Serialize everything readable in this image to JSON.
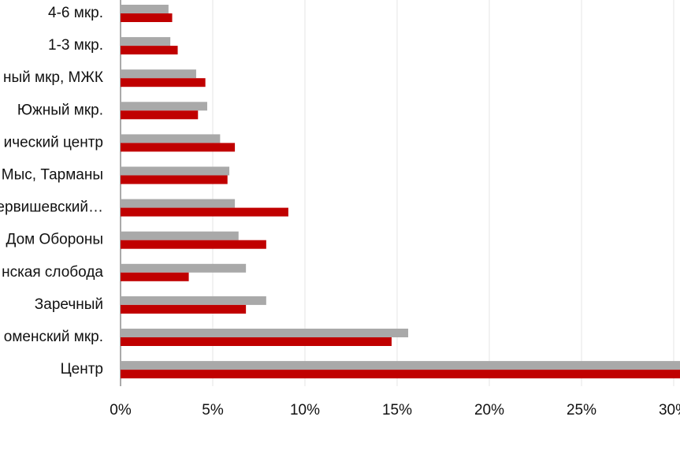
{
  "chart_data": {
    "type": "bar",
    "orientation": "horizontal",
    "categories": [
      "4-6 мкр.",
      "1-3 мкр.",
      "ный мкр, МЖК",
      "Южный мкр.",
      "ический центр",
      "Мыс, Тарманы",
      "Червишевский…",
      "Дом Обороны",
      "нская слобода",
      "Заречный",
      "оменский мкр.",
      "Центр"
    ],
    "series": [
      {
        "color": "#a9a9a9",
        "values": [
          2.6,
          2.7,
          4.1,
          4.7,
          5.4,
          5.9,
          6.2,
          6.4,
          6.8,
          7.9,
          15.6,
          31
        ]
      },
      {
        "color": "#c00000",
        "values": [
          2.8,
          3.1,
          4.6,
          4.2,
          6.2,
          5.8,
          9.1,
          7.9,
          3.7,
          6.8,
          14.7,
          31
        ]
      }
    ],
    "xlim": [
      0,
      30
    ],
    "xticks": [
      {
        "value": 0,
        "label": "0%"
      },
      {
        "value": 5,
        "label": "5%"
      },
      {
        "value": 10,
        "label": "10%"
      },
      {
        "value": 15,
        "label": "15%"
      },
      {
        "value": 20,
        "label": "20%"
      },
      {
        "value": 25,
        "label": "25%"
      },
      {
        "value": 30,
        "label": "30%"
      }
    ],
    "grid": true
  }
}
